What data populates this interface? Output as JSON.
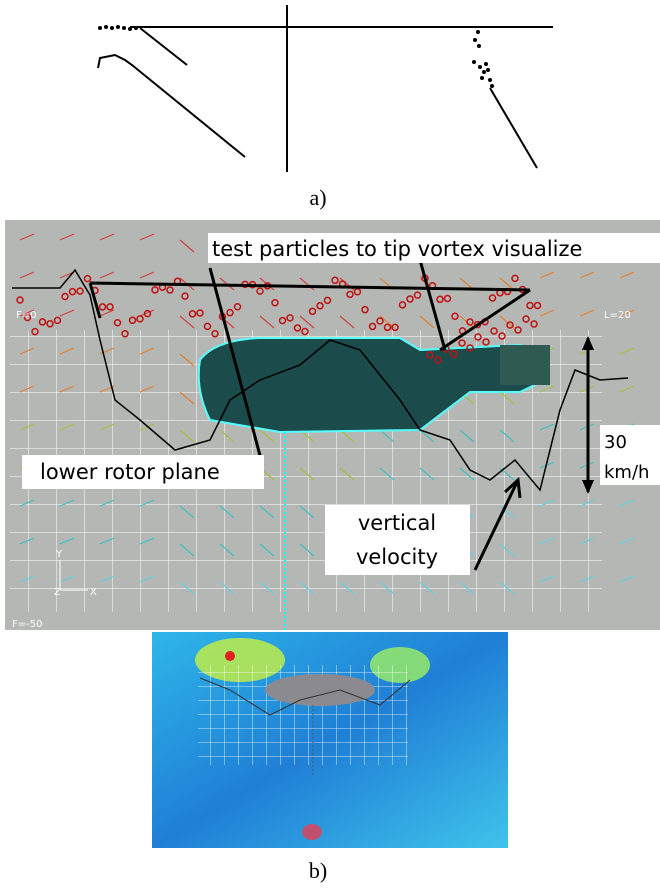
{
  "panel_a": {
    "caption": "a)"
  },
  "panel_b": {
    "caption": "b)",
    "labels": {
      "particles": "test particles to tip vortex visualize",
      "frame_start": "F=0",
      "frame_left": "L=20",
      "rotor_plane": "lower rotor plane",
      "speed_value": "30",
      "speed_unit": "km/h",
      "velocity_line1": "vertical",
      "velocity_line2": "velocity",
      "axis_y": "Y",
      "axis_z": "Z",
      "axis_x": "X",
      "frame_end": "F=-50"
    }
  }
}
